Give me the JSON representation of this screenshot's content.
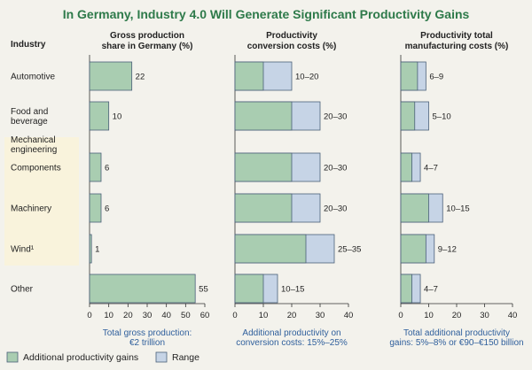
{
  "title": "In Germany, Industry 4.0 Will Generate Significant Productivity Gains",
  "industry_header": "Industry",
  "categories": [
    "Automotive",
    "Food and beverage",
    "Mechanical engineering",
    "Components",
    "Machinery",
    "Wind¹",
    "Other"
  ],
  "category_lines": [
    [
      "Automotive"
    ],
    [
      "Food and",
      "beverage"
    ],
    [
      "Mechanical",
      "engineering"
    ],
    [
      "Components"
    ],
    [
      "Machinery"
    ],
    [
      "Wind¹"
    ],
    [
      "Other"
    ]
  ],
  "legend": {
    "gains": "Additional productivity gains",
    "range": "Range",
    "colors": {
      "gains": "#a9cdb1",
      "range": "#c6d4e6",
      "stroke": "#4a5f7a",
      "highlight": "#f9f3dc"
    }
  },
  "chart_data": [
    {
      "type": "bar",
      "title": [
        "Gross production",
        "share in Germany (%)"
      ],
      "categories": [
        "Automotive",
        "Food and beverage",
        "Components",
        "Machinery",
        "Wind¹",
        "Other"
      ],
      "values": [
        22,
        10,
        6,
        6,
        1,
        55
      ],
      "labels": [
        "22",
        "10",
        "6",
        "6",
        "1",
        "55"
      ],
      "xlim": [
        0,
        60
      ],
      "ticks": [
        0,
        10,
        20,
        30,
        40,
        50,
        60
      ],
      "footer": [
        "Total gross production:",
        "€2 trillion"
      ]
    },
    {
      "type": "bar",
      "title": [
        "Productivity",
        "conversion costs (%)"
      ],
      "categories": [
        "Automotive",
        "Food and beverage",
        "Components",
        "Machinery",
        "Wind¹",
        "Other"
      ],
      "series": [
        {
          "name": "Additional productivity gains",
          "values": [
            10,
            20,
            20,
            20,
            25,
            10
          ]
        },
        {
          "name": "Range",
          "values": [
            20,
            30,
            30,
            30,
            35,
            15
          ]
        }
      ],
      "labels": [
        "10–20",
        "20–30",
        "20–30",
        "20–30",
        "25–35",
        "10–15"
      ],
      "xlim": [
        0,
        40
      ],
      "ticks": [
        0,
        10,
        20,
        30,
        40
      ],
      "footer": [
        "Additional productivity on",
        "conversion costs: 15%–25%"
      ]
    },
    {
      "type": "bar",
      "title": [
        "Productivity total",
        "manufacturing costs (%)"
      ],
      "categories": [
        "Automotive",
        "Food and beverage",
        "Components",
        "Machinery",
        "Wind¹",
        "Other"
      ],
      "series": [
        {
          "name": "Additional productivity gains",
          "values": [
            6,
            5,
            4,
            10,
            9,
            4
          ]
        },
        {
          "name": "Range",
          "values": [
            9,
            10,
            7,
            15,
            12,
            7
          ]
        }
      ],
      "labels": [
        "6–9",
        "5–10",
        "4–7",
        "10–15",
        "9–12",
        "4–7"
      ],
      "xlim": [
        0,
        40
      ],
      "ticks": [
        0,
        10,
        20,
        30,
        40
      ],
      "footer": [
        "Total additional productivity",
        "gains: 5%–8% or €90–€150 billion"
      ]
    }
  ]
}
